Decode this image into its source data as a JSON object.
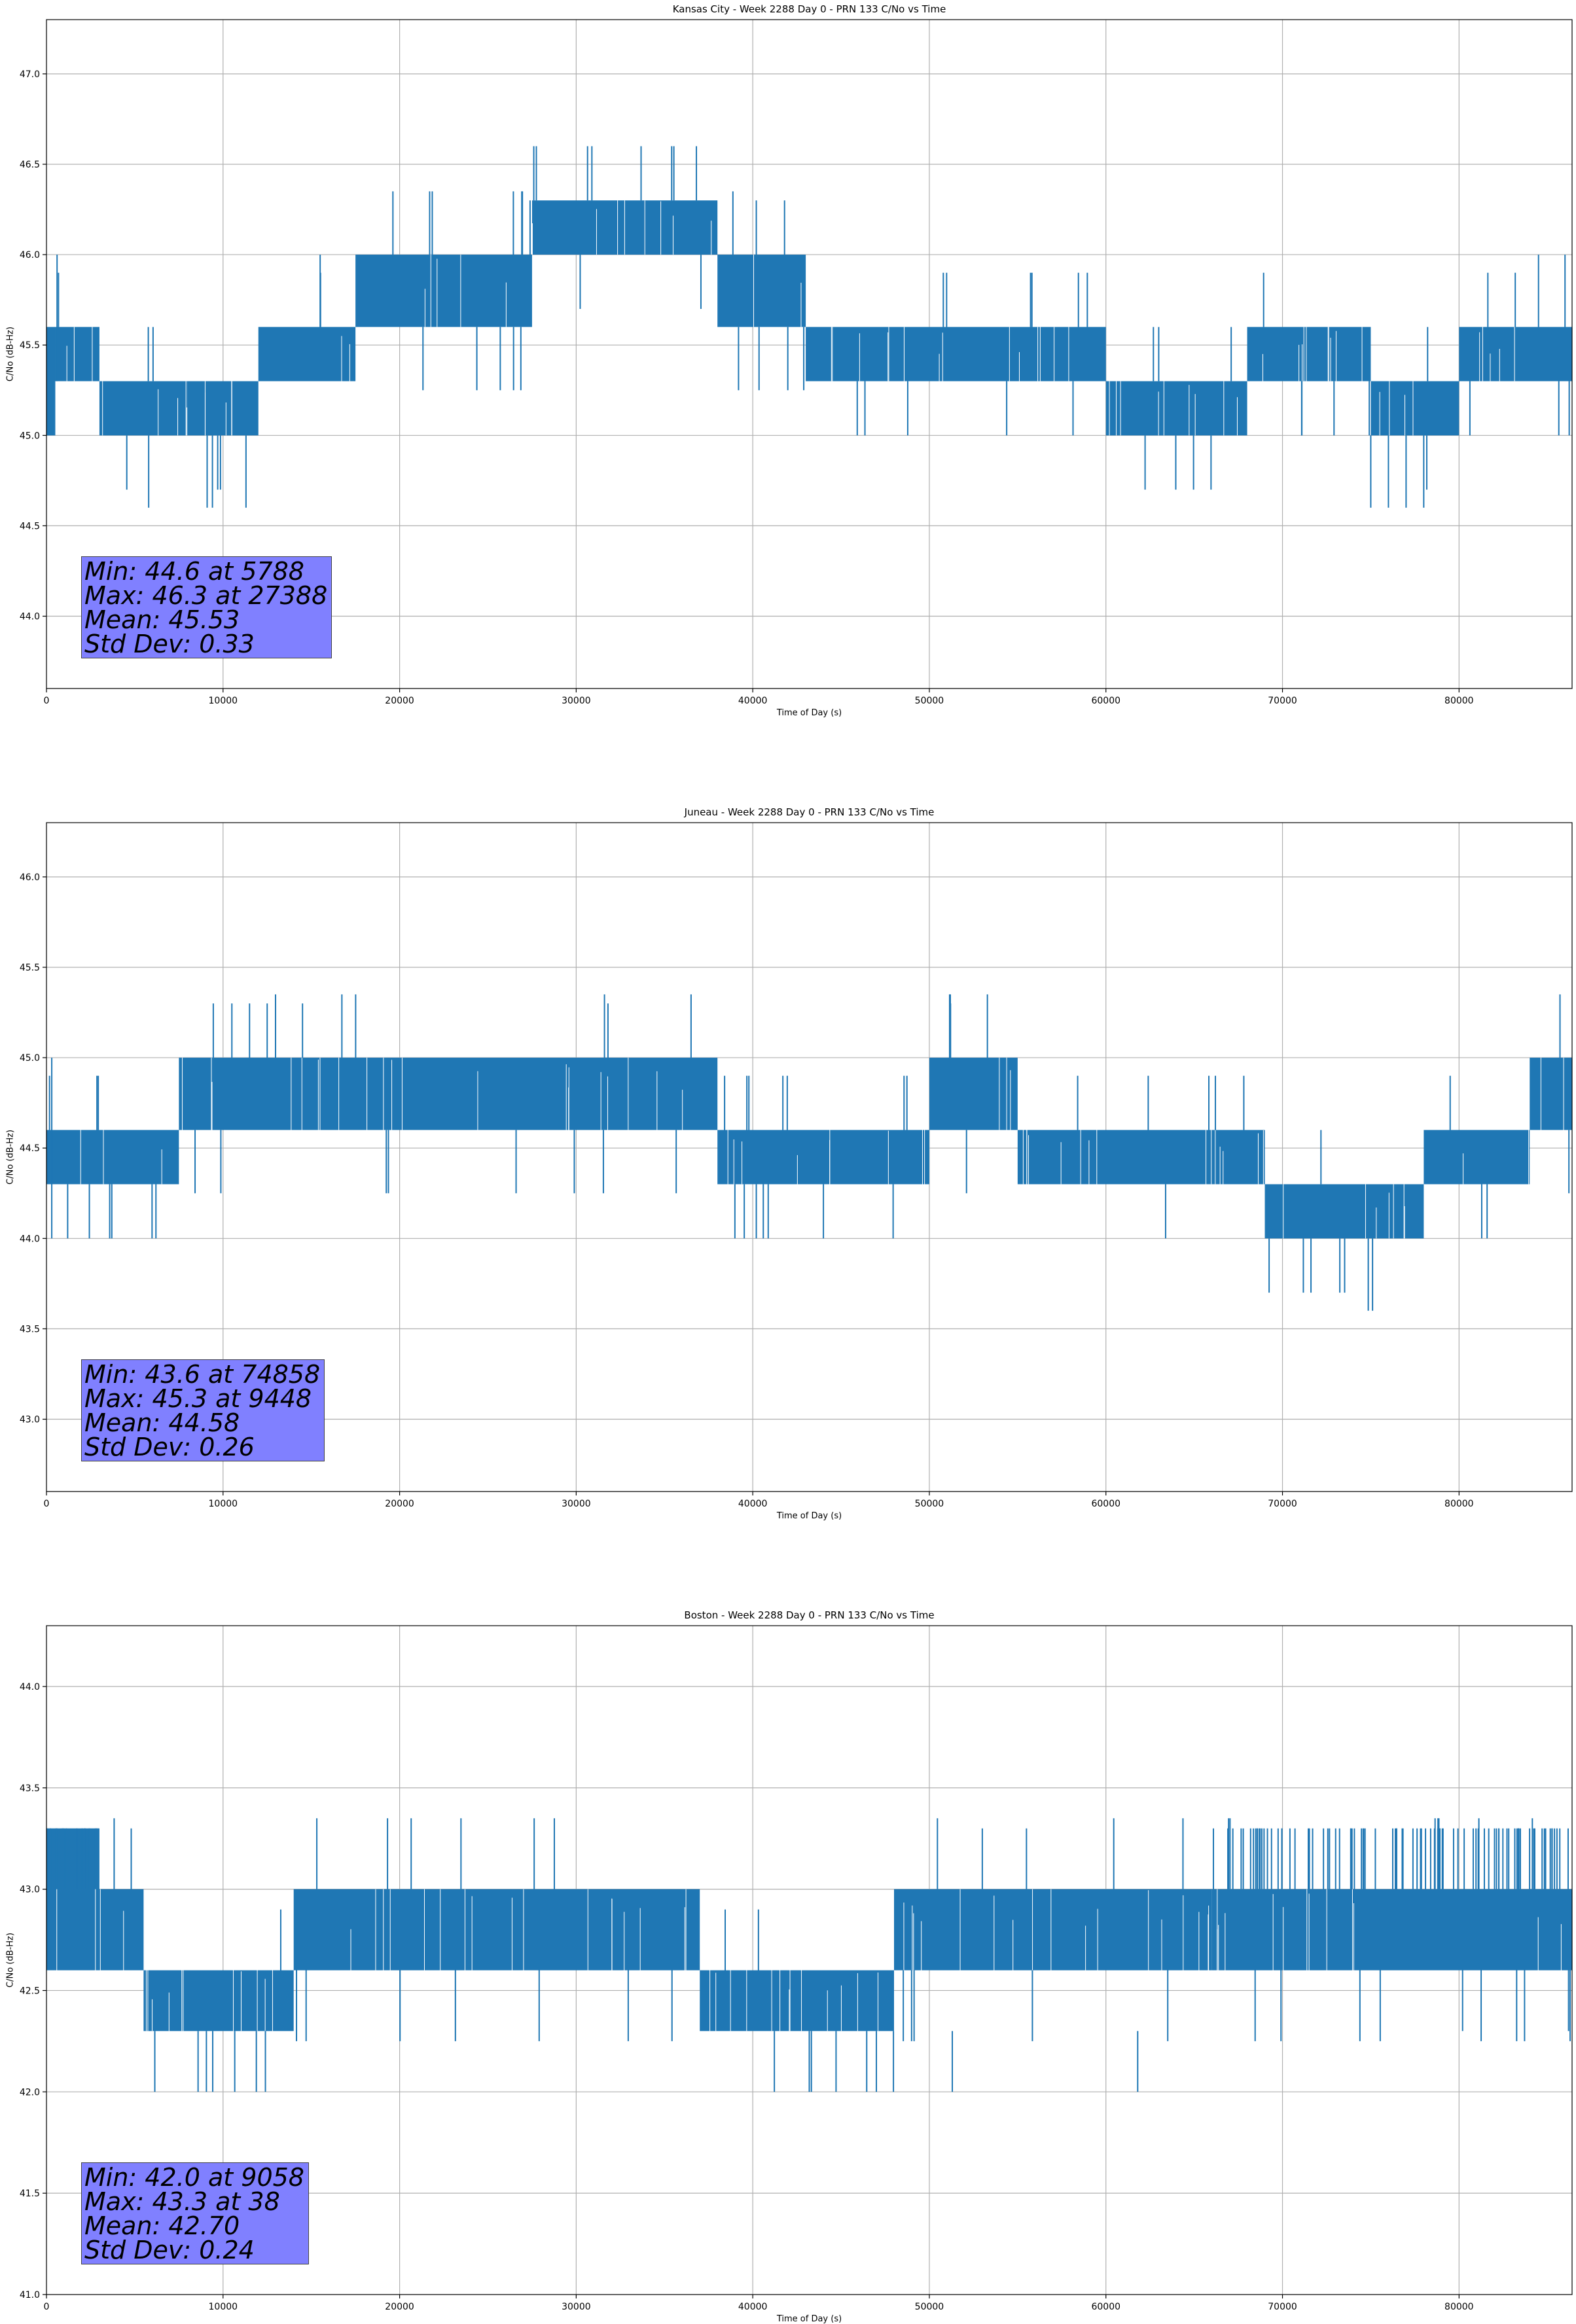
{
  "chart_data": [
    {
      "type": "line",
      "title": "Kansas City - Week 2288 Day 0 - PRN 133 C/No vs Time",
      "xlabel": "Time of Day (s)",
      "ylabel": "C/No (dB-Hz)",
      "xlim": [
        0,
        86400
      ],
      "ylim": [
        43.6,
        47.3
      ],
      "xticks": [
        0,
        10000,
        20000,
        30000,
        40000,
        50000,
        60000,
        70000,
        80000
      ],
      "yticks": [
        44.0,
        44.5,
        45.0,
        45.5,
        46.0,
        46.5,
        47.0
      ],
      "grid": true,
      "line_color": "#1f77b4",
      "quantization_step": 0.33,
      "band_profile": [
        {
          "x0": 0,
          "x1": 500,
          "lo": 45.0,
          "hi": 45.6
        },
        {
          "x0": 500,
          "x1": 3000,
          "lo": 45.3,
          "hi": 45.6
        },
        {
          "x0": 3000,
          "x1": 8000,
          "lo": 45.0,
          "hi": 45.3
        },
        {
          "x0": 8000,
          "x1": 12000,
          "lo": 45.0,
          "hi": 45.3
        },
        {
          "x0": 12000,
          "x1": 17500,
          "lo": 45.3,
          "hi": 45.6
        },
        {
          "x0": 17500,
          "x1": 27500,
          "lo": 45.6,
          "hi": 46.0
        },
        {
          "x0": 27500,
          "x1": 38000,
          "lo": 46.0,
          "hi": 46.3
        },
        {
          "x0": 38000,
          "x1": 43000,
          "lo": 45.6,
          "hi": 46.0
        },
        {
          "x0": 43000,
          "x1": 60000,
          "lo": 45.3,
          "hi": 45.6
        },
        {
          "x0": 60000,
          "x1": 68000,
          "lo": 45.0,
          "hi": 45.3
        },
        {
          "x0": 68000,
          "x1": 75000,
          "lo": 45.3,
          "hi": 45.6
        },
        {
          "x0": 75000,
          "x1": 80000,
          "lo": 45.0,
          "hi": 45.3
        },
        {
          "x0": 80000,
          "x1": 86400,
          "lo": 45.3,
          "hi": 45.6
        }
      ],
      "spikes": [
        {
          "x": 600,
          "lo": 45.3,
          "hi": 46.0
        },
        {
          "x": 5788,
          "lo": 44.6,
          "hi": 45.0
        },
        {
          "x": 9100,
          "lo": 44.6,
          "hi": 45.0
        },
        {
          "x": 9400,
          "lo": 44.6,
          "hi": 45.0
        },
        {
          "x": 11300,
          "lo": 44.6,
          "hi": 45.0
        },
        {
          "x": 15500,
          "lo": 45.6,
          "hi": 46.0
        },
        {
          "x": 27388,
          "lo": 46.0,
          "hi": 46.3
        },
        {
          "x": 40200,
          "lo": 46.0,
          "hi": 46.3
        },
        {
          "x": 41800,
          "lo": 46.0,
          "hi": 46.3
        },
        {
          "x": 75000,
          "lo": 44.6,
          "hi": 45.0
        },
        {
          "x": 76000,
          "lo": 44.6,
          "hi": 45.0
        },
        {
          "x": 77000,
          "lo": 44.6,
          "hi": 45.0
        },
        {
          "x": 78000,
          "lo": 44.6,
          "hi": 45.0
        },
        {
          "x": 84500,
          "lo": 45.6,
          "hi": 46.0
        },
        {
          "x": 86000,
          "lo": 45.6,
          "hi": 46.0
        }
      ],
      "stats": {
        "min": "Min: 44.6 at 5788",
        "max": "Max: 46.3 at 27388",
        "mean": "Mean: 45.53",
        "std": "Std Dev: 0.33"
      }
    },
    {
      "type": "line",
      "title": "Juneau - Week 2288 Day 0 - PRN 133 C/No vs Time",
      "xlabel": "Time of Day (s)",
      "ylabel": "C/No (dB-Hz)",
      "xlim": [
        0,
        86400
      ],
      "ylim": [
        42.6,
        46.3
      ],
      "xticks": [
        0,
        10000,
        20000,
        30000,
        40000,
        50000,
        60000,
        70000,
        80000
      ],
      "yticks": [
        43.0,
        43.5,
        44.0,
        44.5,
        45.0,
        45.5,
        46.0
      ],
      "grid": true,
      "line_color": "#1f77b4",
      "band_profile": [
        {
          "x0": 0,
          "x1": 7500,
          "lo": 44.3,
          "hi": 44.6
        },
        {
          "x0": 7500,
          "x1": 38000,
          "lo": 44.6,
          "hi": 45.0
        },
        {
          "x0": 38000,
          "x1": 50000,
          "lo": 44.3,
          "hi": 44.6
        },
        {
          "x0": 50000,
          "x1": 55000,
          "lo": 44.6,
          "hi": 45.0
        },
        {
          "x0": 55000,
          "x1": 69000,
          "lo": 44.3,
          "hi": 44.6
        },
        {
          "x0": 69000,
          "x1": 78000,
          "lo": 44.0,
          "hi": 44.3
        },
        {
          "x0": 78000,
          "x1": 84000,
          "lo": 44.3,
          "hi": 44.6
        },
        {
          "x0": 84000,
          "x1": 86400,
          "lo": 44.6,
          "hi": 45.0
        }
      ],
      "spikes": [
        {
          "x": 300,
          "lo": 44.0,
          "hi": 45.0
        },
        {
          "x": 1200,
          "lo": 44.0,
          "hi": 44.3
        },
        {
          "x": 3700,
          "lo": 44.0,
          "hi": 44.3
        },
        {
          "x": 6200,
          "lo": 44.0,
          "hi": 44.3
        },
        {
          "x": 9448,
          "lo": 45.0,
          "hi": 45.3
        },
        {
          "x": 10500,
          "lo": 45.0,
          "hi": 45.3
        },
        {
          "x": 11500,
          "lo": 45.0,
          "hi": 45.3
        },
        {
          "x": 12500,
          "lo": 45.0,
          "hi": 45.3
        },
        {
          "x": 14500,
          "lo": 45.0,
          "hi": 45.3
        },
        {
          "x": 31800,
          "lo": 45.0,
          "hi": 45.3
        },
        {
          "x": 40200,
          "lo": 44.0,
          "hi": 44.3
        },
        {
          "x": 44000,
          "lo": 44.0,
          "hi": 44.3
        },
        {
          "x": 51200,
          "lo": 45.0,
          "hi": 45.3
        },
        {
          "x": 74858,
          "lo": 43.6,
          "hi": 44.0
        },
        {
          "x": 75100,
          "lo": 43.6,
          "hi": 44.0
        }
      ],
      "stats": {
        "min": "Min: 43.6 at 74858",
        "max": "Max: 45.3 at 9448",
        "mean": "Mean: 44.58",
        "std": "Std Dev: 0.26"
      }
    },
    {
      "type": "line",
      "title": "Boston - Week 2288 Day 0 - PRN 133 C/No vs Time",
      "xlabel": "Time of Day (s)",
      "ylabel": "C/No (dB-Hz)",
      "xlim": [
        0,
        86400
      ],
      "ylim": [
        41.0,
        44.3
      ],
      "xticks": [
        0,
        10000,
        20000,
        30000,
        40000,
        50000,
        60000,
        70000,
        80000
      ],
      "yticks": [
        41.0,
        41.5,
        42.0,
        42.5,
        43.0,
        43.5,
        44.0
      ],
      "grid": true,
      "line_color": "#1f77b4",
      "band_profile": [
        {
          "x0": 0,
          "x1": 3000,
          "lo": 42.6,
          "hi": 43.3
        },
        {
          "x0": 3000,
          "x1": 5500,
          "lo": 42.6,
          "hi": 43.0
        },
        {
          "x0": 5500,
          "x1": 14000,
          "lo": 42.3,
          "hi": 42.6
        },
        {
          "x0": 14000,
          "x1": 37000,
          "lo": 42.6,
          "hi": 43.0
        },
        {
          "x0": 37000,
          "x1": 48000,
          "lo": 42.3,
          "hi": 42.6
        },
        {
          "x0": 48000,
          "x1": 66000,
          "lo": 42.6,
          "hi": 43.0
        },
        {
          "x0": 66000,
          "x1": 86400,
          "lo": 42.6,
          "hi": 43.0
        }
      ],
      "spikes": [
        {
          "x": 38,
          "lo": 42.6,
          "hi": 43.3
        },
        {
          "x": 4800,
          "lo": 42.6,
          "hi": 43.3
        },
        {
          "x": 9058,
          "lo": 42.0,
          "hi": 42.3
        },
        {
          "x": 12400,
          "lo": 42.0,
          "hi": 42.3
        },
        {
          "x": 43200,
          "lo": 42.0,
          "hi": 42.3
        },
        {
          "x": 47000,
          "lo": 42.0,
          "hi": 42.3
        },
        {
          "x": 51300,
          "lo": 42.0,
          "hi": 42.3
        },
        {
          "x": 53000,
          "lo": 43.0,
          "hi": 43.3
        },
        {
          "x": 55500,
          "lo": 43.0,
          "hi": 43.3
        },
        {
          "x": 61800,
          "lo": 42.0,
          "hi": 42.3
        },
        {
          "x": 80200,
          "lo": 42.3,
          "hi": 42.6
        },
        {
          "x": 86200,
          "lo": 42.3,
          "hi": 42.6
        }
      ],
      "overlay_upper": [
        {
          "x0": 0,
          "x1": 3000,
          "lo": 43.0,
          "hi": 43.3
        },
        {
          "x0": 66000,
          "x1": 86400,
          "lo": 43.0,
          "hi": 43.3
        }
      ],
      "stats": {
        "min": "Min: 42.0 at 9058",
        "max": "Max: 43.3 at 38",
        "mean": "Mean: 42.70",
        "std": "Std Dev: 0.24"
      }
    }
  ]
}
